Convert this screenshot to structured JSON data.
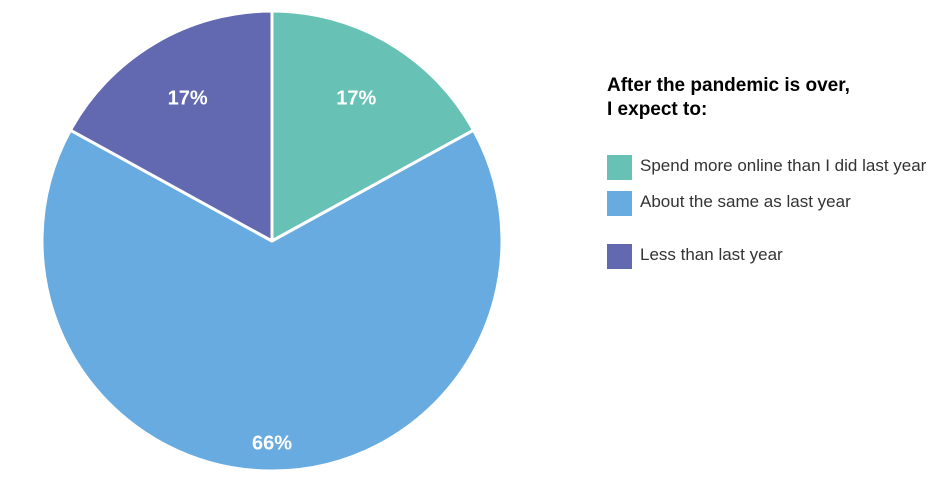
{
  "chart_data": {
    "type": "pie",
    "title": "",
    "legend_position": "right",
    "legend_title": [
      "After the pandemic is over,",
      "I expect to:"
    ],
    "slices": [
      {
        "label": "Spend more online than I did last year",
        "value": 17,
        "display": "17%",
        "color": "#68c1b5"
      },
      {
        "label": "About the same as last year",
        "value": 66,
        "display": "66%",
        "color": "#68abe0"
      },
      {
        "label": "Less than last year",
        "value": 17,
        "display": "17%",
        "color": "#6269b0"
      }
    ]
  }
}
